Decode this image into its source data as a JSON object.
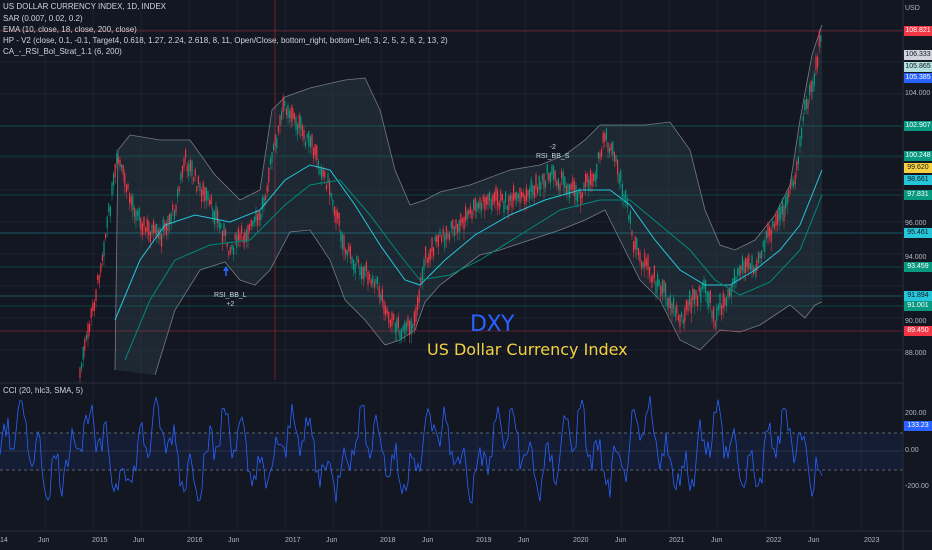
{
  "header": {
    "title": "US DOLLAR CURRENCY INDEX, 1D, INDEX",
    "currency": "USD"
  },
  "indicators": [
    "SAR (0.007, 0.02, 0.2)",
    "EMA (10, close, 18, close, 200, close)",
    "HP - V2 (close, 0.1, -0.1, Target4, 0.618, 1.27, 2.24, 2.618, 8, 11, Open/Close, bottom_right, bottom_left, 3, 2, 5, 2, 8, 2, 13, 2)",
    "CA_-_RSI_Bol_Strat_1.1 (6, 200)"
  ],
  "watermark": {
    "symbol": "DXY",
    "name": "US Dollar Currency Index"
  },
  "signals": {
    "sell": {
      "label": "RSI_BB_S",
      "value": "-2"
    },
    "buy": {
      "label": "RSI_BB_L",
      "value": "+2"
    }
  },
  "price_axis": {
    "ticks": [
      "104.000",
      "96.000",
      "94.000",
      "90.000",
      "88.000"
    ]
  },
  "price_labels": [
    {
      "text": "108.821",
      "bg": "#f23645",
      "fg": "#ffffff"
    },
    {
      "text": "106.333",
      "bg": "#d1d4dc",
      "fg": "#131722"
    },
    {
      "text": "105.865",
      "bg": "#b2dfdb",
      "fg": "#131722"
    },
    {
      "text": "105.385",
      "bg": "#2962ff",
      "fg": "#ffffff"
    },
    {
      "text": "102.907",
      "bg": "#089981",
      "fg": "#ffffff"
    },
    {
      "text": "100.248",
      "bg": "#089981",
      "fg": "#ffffff"
    },
    {
      "text": "99.620",
      "bg": "#f5d142",
      "fg": "#131722"
    },
    {
      "text": "98.661",
      "bg": "#26c6da",
      "fg": "#131722"
    },
    {
      "text": "97.831",
      "bg": "#089981",
      "fg": "#ffffff"
    },
    {
      "text": "95.461",
      "bg": "#26c6da",
      "fg": "#131722"
    },
    {
      "text": "93.459",
      "bg": "#089981",
      "fg": "#ffffff"
    },
    {
      "text": "91.894",
      "bg": "#26c6da",
      "fg": "#131722"
    },
    {
      "text": "91.001",
      "bg": "#089981",
      "fg": "#ffffff"
    },
    {
      "text": "89.450",
      "bg": "#f23645",
      "fg": "#ffffff"
    }
  ],
  "cci": {
    "title": "CCI (20, hlc3, SMA, 5)",
    "ticks": [
      "200.00",
      "0.00",
      "-200.00"
    ],
    "value_label": "133.23"
  },
  "time_axis": {
    "labels": [
      "14",
      "Jun",
      "2015",
      "Jun",
      "2016",
      "Jun",
      "2017",
      "Jun",
      "2018",
      "Jun",
      "2019",
      "Jun",
      "2020",
      "Jun",
      "2021",
      "Jun",
      "2022",
      "Jun",
      "2023"
    ]
  },
  "colors": {
    "background": "#131722",
    "up": "#089981",
    "down": "#f23645",
    "ema": "#26c6da",
    "band": "#787b86",
    "cci": "#2962ff"
  }
}
